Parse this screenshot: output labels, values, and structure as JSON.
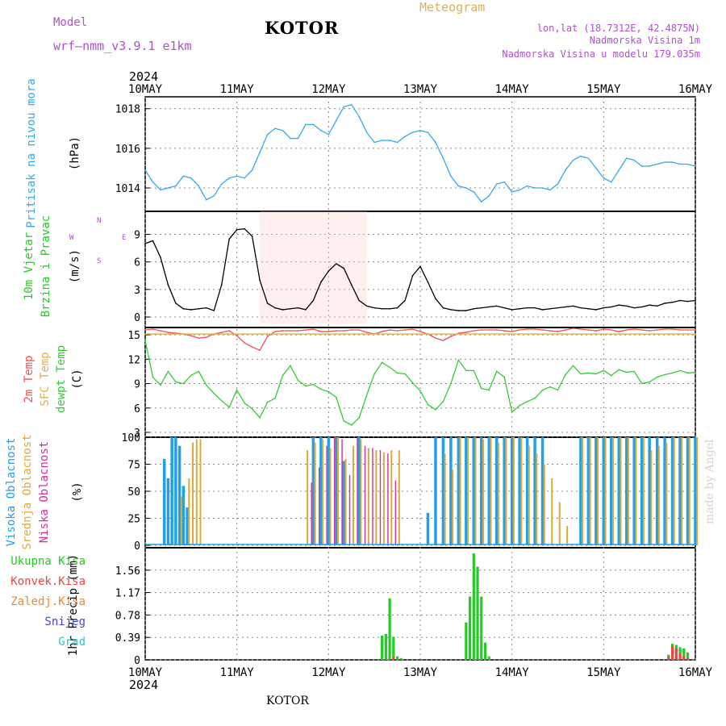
{
  "header": {
    "model_label": "Model",
    "model_name": "wrf–nmm_v3.9.1  e1km",
    "location": "KOTOR",
    "product": "Meteogram",
    "lonlat": "lon,lat (18.7312E, 42.4875N)",
    "elevation": "Nadmorska Visina 1m",
    "model_elevation": "Nadmorska Visina u modelu 179.035m"
  },
  "footer": {
    "location": "KOTOR",
    "credit": "made by Angel"
  },
  "colors": {
    "pressure": "#33aaee",
    "wind_speed": "#000000",
    "t2m": "#ee5050",
    "sfc": "#e0b050",
    "dewpt": "#33cc33",
    "high_cloud": "#22a0e8",
    "mid_cloud": "#e0a838",
    "low_cloud": "#d030a0",
    "total_precip": "#22cc22",
    "conv_precip": "#ee4444",
    "frozen": "#ee8833",
    "snow": "#4444ee",
    "hail": "#22cccc",
    "header_purple": "#b050d0"
  },
  "time_axis": {
    "year": "2024",
    "ticks": [
      "10MAY",
      "11MAY",
      "12MAY",
      "13MAY",
      "14MAY",
      "15MAY",
      "16MAY"
    ],
    "hours_total": 144
  },
  "chart_data": [
    {
      "type": "line",
      "title": "",
      "ylabel": "Pritisak na nivou mora",
      "unit": "(hPa)",
      "ylim": [
        1012.9,
        1018.6
      ],
      "yticks": [
        "1014",
        "1016",
        "1018"
      ],
      "ytick_values": [
        1014,
        1016,
        1018
      ],
      "x": [
        0,
        2,
        4,
        6,
        8,
        10,
        12,
        14,
        16,
        18,
        20,
        22,
        24,
        26,
        28,
        30,
        32,
        34,
        36,
        38,
        40,
        42,
        44,
        46,
        48,
        50,
        52,
        54,
        56,
        58,
        60,
        62,
        64,
        66,
        68,
        70,
        72,
        74,
        76,
        78,
        80,
        82,
        84,
        86,
        88,
        90,
        92,
        94,
        96,
        98,
        100,
        102,
        104,
        106,
        108,
        110,
        112,
        114,
        116,
        118,
        120,
        122,
        124,
        126,
        128,
        130,
        132,
        134,
        136,
        138,
        140,
        142,
        144
      ],
      "series": [
        {
          "name": "",
          "values": [
            1014.9,
            1014.3,
            1013.9,
            1014.0,
            1014.1,
            1014.6,
            1014.5,
            1014.1,
            1013.4,
            1013.6,
            1014.2,
            1014.5,
            1014.6,
            1014.5,
            1014.9,
            1015.8,
            1016.7,
            1017.0,
            1016.9,
            1016.5,
            1016.5,
            1017.2,
            1017.2,
            1016.9,
            1016.7,
            1017.4,
            1018.1,
            1018.2,
            1017.6,
            1016.8,
            1016.3,
            1016.4,
            1016.4,
            1016.3,
            1016.6,
            1016.8,
            1016.9,
            1016.8,
            1016.3,
            1015.5,
            1014.6,
            1014.1,
            1014.0,
            1013.8,
            1013.3,
            1013.6,
            1014.2,
            1014.3,
            1013.8,
            1013.9,
            1014.1,
            1014.0,
            1014.0,
            1013.9,
            1014.2,
            1014.9,
            1015.4,
            1015.6,
            1015.5,
            1015.0,
            1014.5,
            1014.3,
            1014.9,
            1015.5,
            1015.4,
            1015.1,
            1015.1,
            1015.2,
            1015.3,
            1015.3,
            1015.2,
            1015.2,
            1015.1
          ]
        }
      ]
    },
    {
      "type": "line",
      "title": "",
      "ylabel": "10m Vjetar Brzina i Pravac",
      "unit": "(m/s)",
      "ylim": [
        -0.7,
        11.5
      ],
      "yticks": [
        "0",
        "3",
        "6",
        "9"
      ],
      "ytick_values": [
        0,
        3,
        6,
        9
      ],
      "compass": {
        "n": "N",
        "s": "S",
        "w": "W",
        "e": "E"
      },
      "x": [
        0,
        2,
        4,
        6,
        8,
        10,
        12,
        14,
        16,
        18,
        20,
        22,
        24,
        26,
        28,
        30,
        32,
        34,
        36,
        38,
        40,
        42,
        44,
        46,
        48,
        50,
        52,
        54,
        56,
        58,
        60,
        62,
        64,
        66,
        68,
        70,
        72,
        74,
        76,
        78,
        80,
        82,
        84,
        86,
        88,
        90,
        92,
        94,
        96,
        98,
        100,
        102,
        104,
        106,
        108,
        110,
        112,
        114,
        116,
        118,
        120,
        122,
        124,
        126,
        128,
        130,
        132,
        134,
        136,
        138,
        140,
        142,
        144
      ],
      "series": [
        {
          "name": "",
          "values": [
            8.0,
            8.3,
            6.5,
            3.5,
            1.5,
            0.9,
            0.8,
            0.9,
            1.0,
            0.7,
            3.5,
            8.5,
            9.5,
            9.6,
            8.8,
            4.0,
            1.5,
            1.0,
            0.8,
            0.9,
            1.0,
            0.8,
            1.8,
            3.8,
            5.0,
            5.8,
            5.3,
            3.5,
            1.8,
            1.2,
            1.0,
            0.9,
            0.9,
            1.0,
            1.8,
            4.5,
            5.5,
            3.8,
            2.0,
            1.0,
            0.8,
            0.7,
            0.7,
            0.9,
            1.0,
            1.1,
            1.2,
            1.0,
            0.8,
            0.9,
            1.0,
            1.0,
            0.8,
            0.9,
            1.0,
            1.1,
            1.2,
            1.0,
            0.9,
            0.8,
            1.0,
            1.1,
            1.3,
            1.2,
            1.0,
            1.1,
            1.3,
            1.2,
            1.5,
            1.6,
            1.8,
            1.7,
            1.8
          ]
        }
      ]
    },
    {
      "type": "line",
      "title": "",
      "ylabel": "2m Temp / SFC Temp / dewpt Temp",
      "unit": "(C)",
      "ylim": [
        2.8,
        15.9
      ],
      "yticks": [
        "3",
        "6",
        "9",
        "12",
        "15"
      ],
      "ytick_values": [
        3,
        6,
        9,
        12,
        15
      ],
      "x": [
        0,
        2,
        4,
        6,
        8,
        10,
        12,
        14,
        16,
        18,
        20,
        22,
        24,
        26,
        28,
        30,
        32,
        34,
        36,
        38,
        40,
        42,
        44,
        46,
        48,
        50,
        52,
        54,
        56,
        58,
        60,
        62,
        64,
        66,
        68,
        70,
        72,
        74,
        76,
        78,
        80,
        82,
        84,
        86,
        88,
        90,
        92,
        94,
        96,
        98,
        100,
        102,
        104,
        106,
        108,
        110,
        112,
        114,
        116,
        118,
        120,
        122,
        124,
        126,
        128,
        130,
        132,
        134,
        136,
        138,
        140,
        142,
        144
      ],
      "series": [
        {
          "name": "2m Temp",
          "values": [
            15.6,
            15.7,
            15.5,
            15.3,
            15.2,
            15.1,
            14.9,
            14.6,
            14.7,
            15.1,
            15.3,
            15.5,
            14.9,
            14.0,
            13.5,
            13.1,
            14.8,
            15.4,
            15.5,
            15.5,
            15.5,
            15.6,
            15.7,
            15.4,
            15.4,
            15.5,
            15.5,
            15.6,
            15.6,
            15.3,
            15.1,
            15.4,
            15.6,
            15.5,
            15.6,
            15.7,
            15.4,
            15.1,
            14.6,
            14.3,
            14.8,
            15.2,
            15.3,
            15.5,
            15.6,
            15.6,
            15.6,
            15.5,
            15.4,
            15.6,
            15.7,
            15.7,
            15.6,
            15.5,
            15.4,
            15.6,
            15.8,
            15.7,
            15.6,
            15.5,
            15.7,
            15.6,
            15.4,
            15.6,
            15.7,
            15.6,
            15.5,
            15.6,
            15.7,
            15.7,
            15.6,
            15.6,
            15.6
          ]
        },
        {
          "name": "SFC Temp",
          "values": [
            15.1,
            15.1,
            15.1,
            15.1,
            15.1,
            15.1,
            15.1,
            15.1,
            15.1,
            15.1,
            15.1,
            15.1,
            15.1,
            15.1,
            15.1,
            15.1,
            15.1,
            15.1,
            15.1,
            15.1,
            15.1,
            15.1,
            15.1,
            15.1,
            15.1,
            15.1,
            15.1,
            15.1,
            15.1,
            15.1,
            15.1,
            15.1,
            15.1,
            15.1,
            15.1,
            15.1,
            15.1,
            15.1,
            15.1,
            15.1,
            15.1,
            15.1,
            15.1,
            15.1,
            15.1,
            15.1,
            15.1,
            15.1,
            15.1,
            15.1,
            15.1,
            15.1,
            15.1,
            15.1,
            15.1,
            15.1,
            15.1,
            15.1,
            15.1,
            15.1,
            15.1,
            15.1,
            15.1,
            15.1,
            15.1,
            15.1,
            15.1,
            15.1,
            15.1,
            15.1,
            15.1,
            15.1,
            15.1
          ]
        },
        {
          "name": "dewpt Temp",
          "values": [
            14.3,
            9.8,
            8.8,
            10.5,
            9.2,
            9.0,
            10.0,
            10.5,
            8.8,
            7.8,
            6.9,
            6.1,
            8.2,
            6.6,
            5.9,
            4.8,
            6.7,
            7.2,
            10.0,
            11.2,
            9.4,
            8.7,
            8.9,
            8.3,
            8.0,
            7.3,
            4.4,
            3.9,
            4.8,
            7.6,
            10.2,
            11.6,
            11.0,
            10.3,
            10.2,
            9.1,
            8.1,
            6.4,
            5.8,
            6.8,
            9.0,
            11.9,
            10.6,
            10.6,
            8.4,
            8.2,
            10.5,
            9.8,
            5.5,
            6.3,
            6.8,
            7.2,
            8.2,
            8.6,
            8.2,
            10.1,
            11.2,
            10.2,
            10.3,
            10.2,
            10.6,
            10.0,
            10.7,
            10.4,
            10.5,
            9.0,
            9.2,
            9.8,
            10.1,
            10.3,
            10.6,
            10.3,
            10.4
          ]
        }
      ]
    },
    {
      "type": "bar",
      "title": "",
      "ylabel": "Visoka Oblacnost / Srednja Oblacnost / Niska Oblacnost",
      "unit": "(%)",
      "ylim": [
        0,
        100
      ],
      "yticks": [
        "0",
        "25",
        "50",
        "75",
        "100"
      ],
      "ytick_values": [
        0,
        25,
        50,
        75,
        100
      ],
      "x": [
        5,
        6,
        7,
        8,
        9,
        10,
        11,
        12,
        13,
        14,
        15,
        16,
        30,
        32,
        34,
        36,
        38,
        40,
        42,
        44,
        46,
        48,
        50,
        52,
        54,
        56,
        58,
        60,
        62,
        64,
        66,
        68,
        70,
        72,
        74,
        76,
        78,
        80,
        82,
        84,
        86,
        88,
        90,
        92,
        94,
        96,
        98,
        100,
        102,
        104,
        106,
        108,
        110,
        114,
        116,
        118,
        120,
        122,
        124,
        126,
        128,
        130,
        132,
        134,
        136,
        138,
        140,
        142,
        144
      ],
      "series": [
        {
          "name": "Visoka Oblacnost",
          "values": [
            80,
            62,
            100,
            100,
            92,
            55,
            35,
            0,
            0,
            0,
            0,
            0,
            0,
            0,
            0,
            0,
            0,
            0,
            0,
            100,
            100,
            100,
            100,
            78,
            0,
            100,
            0,
            0,
            0,
            0,
            0,
            0,
            0,
            0,
            30,
            100,
            100,
            100,
            100,
            100,
            100,
            100,
            100,
            100,
            100,
            100,
            100,
            100,
            100,
            100,
            0,
            0,
            0,
            100,
            100,
            100,
            100,
            100,
            100,
            100,
            100,
            100,
            100,
            100,
            100,
            100,
            100,
            100,
            100
          ]
        },
        {
          "name": "Srednja Oblacnost",
          "values": [
            0,
            0,
            0,
            0,
            45,
            0,
            62,
            95,
            98,
            98,
            0,
            0,
            0,
            0,
            0,
            0,
            0,
            0,
            88,
            95,
            98,
            90,
            100,
            80,
            92,
            98,
            90,
            88,
            86,
            88,
            88,
            0,
            0,
            0,
            0,
            0,
            85,
            70,
            100,
            100,
            100,
            98,
            100,
            95,
            100,
            100,
            100,
            92,
            85,
            75,
            62,
            40,
            18,
            100,
            100,
            100,
            100,
            100,
            100,
            100,
            100,
            100,
            88,
            92,
            95,
            100,
            100,
            100,
            100
          ]
        },
        {
          "name": "Niska Oblacnost",
          "values": [
            0,
            0,
            0,
            0,
            0,
            0,
            0,
            0,
            0,
            0,
            0,
            0,
            0,
            0,
            0,
            0,
            0,
            0,
            0,
            58,
            72,
            92,
            100,
            98,
            65,
            100,
            92,
            90,
            88,
            85,
            60,
            0,
            0,
            0,
            0,
            0,
            0,
            0,
            0,
            0,
            0,
            0,
            0,
            0,
            0,
            0,
            0,
            0,
            0,
            0,
            0,
            0,
            0,
            0,
            0,
            0,
            0,
            0,
            0,
            0,
            0,
            0,
            0,
            0,
            0,
            0,
            0,
            0,
            0
          ]
        }
      ]
    },
    {
      "type": "bar",
      "title": "",
      "ylabel": "1hr Precip (mm)",
      "unit": "",
      "ylim": [
        0,
        1.95
      ],
      "yticks": [
        "0",
        "0.39",
        "0.78",
        "1.17",
        "1.56"
      ],
      "ytick_values": [
        0,
        0.39,
        0.78,
        1.17,
        1.56
      ],
      "legend": [
        "Ukupna Kisa",
        "Konvek.Kisa",
        "Zaledj.Kisa",
        "Snijeg",
        "Grad"
      ],
      "x": [
        62,
        63,
        64,
        65,
        66,
        67,
        84,
        85,
        86,
        87,
        88,
        89,
        90,
        137,
        138,
        139,
        140,
        141,
        142
      ],
      "series": [
        {
          "name": "Ukupna Kisa",
          "values": [
            0.42,
            0.45,
            1.07,
            0.4,
            0.06,
            0.03,
            0.65,
            1.1,
            1.85,
            1.62,
            1.1,
            0.3,
            0.06,
            0.09,
            0.28,
            0.26,
            0.22,
            0.2,
            0.13
          ]
        },
        {
          "name": "Konvek.Kisa",
          "values": [
            0,
            0,
            0,
            0.05,
            0,
            0,
            0,
            0,
            0,
            0,
            0,
            0,
            0,
            0.05,
            0.24,
            0.2,
            0.12,
            0.06,
            0.03
          ]
        }
      ]
    }
  ]
}
